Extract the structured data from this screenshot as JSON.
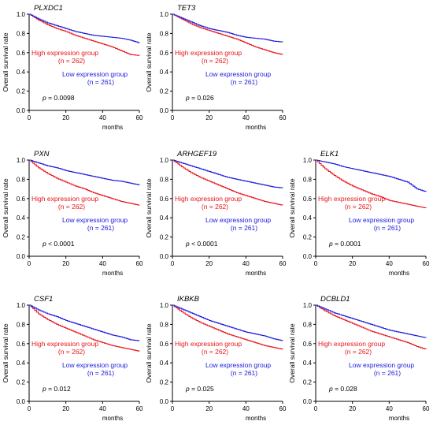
{
  "colors": {
    "high": "#e8141a",
    "low": "#1a1adb",
    "axis": "#000000"
  },
  "shared": {
    "ylabel": "Overall survival rate",
    "xlabel": "months",
    "high_label": "High expression group",
    "high_n": "(n = 262)",
    "low_label": "Low expression group",
    "low_n": "(n = 261)",
    "x_ticks": [
      "0",
      "20",
      "40",
      "60"
    ],
    "y_ticks": [
      "0.0",
      "0.2",
      "0.4",
      "0.6",
      "0.8",
      "1.0"
    ]
  },
  "chart_data": [
    {
      "type": "line",
      "title": "PLXDC1",
      "p_text": "= 0.0098",
      "xlim": [
        0,
        60
      ],
      "ylim": [
        0,
        1
      ],
      "x": [
        0,
        5,
        10,
        15,
        20,
        25,
        30,
        35,
        40,
        45,
        50,
        55,
        60
      ],
      "series": [
        {
          "name": "High expression group",
          "values": [
            1.0,
            0.94,
            0.89,
            0.85,
            0.82,
            0.78,
            0.75,
            0.72,
            0.69,
            0.66,
            0.62,
            0.58,
            0.57
          ]
        },
        {
          "name": "Low expression group",
          "values": [
            1.0,
            0.95,
            0.91,
            0.88,
            0.85,
            0.82,
            0.8,
            0.78,
            0.77,
            0.76,
            0.75,
            0.73,
            0.7
          ]
        }
      ]
    },
    {
      "type": "line",
      "title": "TET3",
      "p_text": "= 0.026",
      "xlim": [
        0,
        60
      ],
      "ylim": [
        0,
        1
      ],
      "x": [
        0,
        5,
        10,
        15,
        20,
        25,
        30,
        35,
        40,
        45,
        50,
        55,
        60
      ],
      "series": [
        {
          "name": "High expression group",
          "values": [
            1.0,
            0.95,
            0.9,
            0.86,
            0.83,
            0.8,
            0.77,
            0.74,
            0.7,
            0.66,
            0.63,
            0.6,
            0.58
          ]
        },
        {
          "name": "Low expression group",
          "values": [
            1.0,
            0.96,
            0.92,
            0.88,
            0.85,
            0.83,
            0.81,
            0.78,
            0.76,
            0.75,
            0.74,
            0.72,
            0.71
          ]
        }
      ]
    },
    null,
    {
      "type": "line",
      "title": "PXN",
      "p_text": "< 0.0001",
      "xlim": [
        0,
        60
      ],
      "ylim": [
        0,
        1
      ],
      "x": [
        0,
        5,
        10,
        15,
        20,
        25,
        30,
        35,
        40,
        45,
        50,
        55,
        60
      ],
      "series": [
        {
          "name": "High expression group",
          "values": [
            1.0,
            0.92,
            0.86,
            0.81,
            0.77,
            0.73,
            0.7,
            0.66,
            0.63,
            0.6,
            0.57,
            0.55,
            0.53
          ]
        },
        {
          "name": "Low expression group",
          "values": [
            1.0,
            0.97,
            0.94,
            0.92,
            0.89,
            0.87,
            0.85,
            0.83,
            0.81,
            0.79,
            0.78,
            0.76,
            0.74
          ]
        }
      ]
    },
    {
      "type": "line",
      "title": "ARHGEF19",
      "p_text": "< 0.0001",
      "xlim": [
        0,
        60
      ],
      "ylim": [
        0,
        1
      ],
      "x": [
        0,
        5,
        10,
        15,
        20,
        25,
        30,
        35,
        40,
        45,
        50,
        55,
        60
      ],
      "series": [
        {
          "name": "High expression group",
          "values": [
            1.0,
            0.93,
            0.87,
            0.82,
            0.78,
            0.74,
            0.7,
            0.66,
            0.63,
            0.6,
            0.57,
            0.55,
            0.53
          ]
        },
        {
          "name": "Low expression group",
          "values": [
            1.0,
            0.97,
            0.94,
            0.91,
            0.88,
            0.85,
            0.82,
            0.8,
            0.78,
            0.76,
            0.74,
            0.72,
            0.71
          ]
        }
      ]
    },
    {
      "type": "line",
      "title": "ELK1",
      "p_text": "= 0.0001",
      "xlim": [
        0,
        60
      ],
      "ylim": [
        0,
        1
      ],
      "x": [
        0,
        5,
        10,
        15,
        20,
        25,
        30,
        35,
        40,
        45,
        50,
        55,
        60
      ],
      "series": [
        {
          "name": "High expression group",
          "values": [
            1.0,
            0.91,
            0.84,
            0.78,
            0.73,
            0.69,
            0.65,
            0.62,
            0.58,
            0.56,
            0.54,
            0.52,
            0.5
          ]
        },
        {
          "name": "Low expression group",
          "values": [
            1.0,
            0.98,
            0.96,
            0.93,
            0.91,
            0.89,
            0.87,
            0.85,
            0.83,
            0.8,
            0.77,
            0.7,
            0.67
          ]
        }
      ]
    },
    {
      "type": "line",
      "title": "CSF1",
      "p_text": "= 0.012",
      "xlim": [
        0,
        60
      ],
      "ylim": [
        0,
        1
      ],
      "x": [
        0,
        5,
        10,
        15,
        20,
        25,
        30,
        35,
        40,
        45,
        50,
        55,
        60
      ],
      "series": [
        {
          "name": "High expression group",
          "values": [
            1.0,
            0.91,
            0.85,
            0.8,
            0.76,
            0.72,
            0.68,
            0.64,
            0.61,
            0.58,
            0.56,
            0.54,
            0.52
          ]
        },
        {
          "name": "Low expression group",
          "values": [
            1.0,
            0.95,
            0.91,
            0.88,
            0.84,
            0.81,
            0.78,
            0.75,
            0.72,
            0.69,
            0.67,
            0.64,
            0.63
          ]
        }
      ]
    },
    {
      "type": "line",
      "title": "IKBKB",
      "p_text": "= 0.025",
      "xlim": [
        0,
        60
      ],
      "ylim": [
        0,
        1
      ],
      "x": [
        0,
        5,
        10,
        15,
        20,
        25,
        30,
        35,
        40,
        45,
        50,
        55,
        60
      ],
      "series": [
        {
          "name": "High expression group",
          "values": [
            1.0,
            0.93,
            0.87,
            0.82,
            0.78,
            0.74,
            0.7,
            0.67,
            0.64,
            0.61,
            0.58,
            0.56,
            0.54
          ]
        },
        {
          "name": "Low expression group",
          "values": [
            1.0,
            0.96,
            0.92,
            0.88,
            0.84,
            0.81,
            0.78,
            0.75,
            0.72,
            0.7,
            0.68,
            0.65,
            0.63
          ]
        }
      ]
    },
    {
      "type": "line",
      "title": "DCBLD1",
      "p_text": "= 0.028",
      "xlim": [
        0,
        60
      ],
      "ylim": [
        0,
        1
      ],
      "x": [
        0,
        5,
        10,
        15,
        20,
        25,
        30,
        35,
        40,
        45,
        50,
        55,
        60
      ],
      "series": [
        {
          "name": "High expression group",
          "values": [
            1.0,
            0.94,
            0.89,
            0.85,
            0.81,
            0.77,
            0.73,
            0.7,
            0.67,
            0.64,
            0.61,
            0.57,
            0.54
          ]
        },
        {
          "name": "Low expression group",
          "values": [
            1.0,
            0.96,
            0.92,
            0.89,
            0.86,
            0.83,
            0.8,
            0.77,
            0.74,
            0.72,
            0.7,
            0.68,
            0.66
          ]
        }
      ]
    }
  ]
}
